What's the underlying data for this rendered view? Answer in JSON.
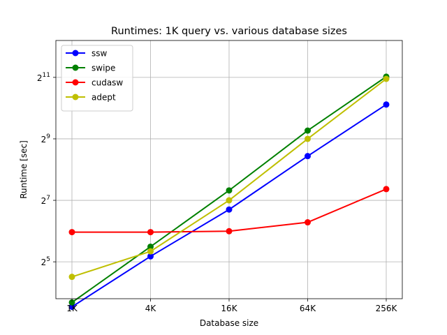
{
  "chart_data": {
    "type": "line",
    "title": "Runtimes: 1K query vs. various database sizes",
    "xlabel": "Database size",
    "ylabel": "Runtime [sec]",
    "categories": [
      "1K",
      "4K",
      "16K",
      "64K",
      "256K"
    ],
    "y_scale": "log2",
    "ylim_exponent": [
      3.8,
      12.2
    ],
    "yticks": [
      {
        "exp": 5,
        "base": "2",
        "sup": "5"
      },
      {
        "exp": 7,
        "base": "2",
        "sup": "7"
      },
      {
        "exp": 9,
        "base": "2",
        "sup": "9"
      },
      {
        "exp": 11,
        "base": "2",
        "sup": "11"
      }
    ],
    "grid": true,
    "legend_position": "upper-left",
    "series": [
      {
        "name": "ssw",
        "color": "#0000ff",
        "values": [
          11.6,
          36.2,
          104,
          347,
          1110
        ]
      },
      {
        "name": "swipe",
        "color": "#008000",
        "values": [
          12.8,
          45,
          160,
          617,
          2080
        ]
      },
      {
        "name": "cudasw",
        "color": "#ff0000",
        "values": [
          62.5,
          62.5,
          63.8,
          78,
          165
        ]
      },
      {
        "name": "adept",
        "color": "#bfbf00",
        "values": [
          22.8,
          40.5,
          128,
          512,
          1980
        ]
      }
    ]
  }
}
